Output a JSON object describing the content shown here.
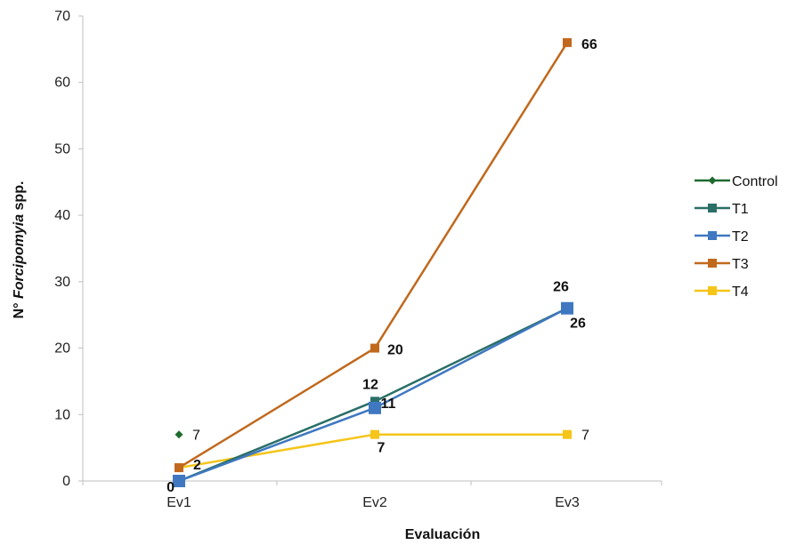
{
  "chart_data": {
    "type": "line",
    "categories": [
      "Ev1",
      "Ev2",
      "Ev3"
    ],
    "ylim": [
      0,
      70
    ],
    "yticks": [
      0,
      10,
      20,
      30,
      40,
      50,
      60,
      70
    ],
    "xlabel": "Evaluación",
    "ylabel": {
      "prefix": "N° ",
      "italic": "Forcipomyia",
      "suffix": " spp."
    },
    "grid": false,
    "legend_position": "right",
    "series": [
      {
        "name": "Control",
        "color": "#1e6b2f",
        "marker": "diamond",
        "values": [
          7,
          null,
          null
        ]
      },
      {
        "name": "T1",
        "color": "#2a6f68",
        "marker": "square",
        "values": [
          0,
          12,
          26
        ]
      },
      {
        "name": "T2",
        "color": "#3f78c1",
        "marker": "square-large",
        "values": [
          0,
          11,
          26
        ]
      },
      {
        "name": "T3",
        "color": "#c0691d",
        "marker": "square",
        "values": [
          2,
          20,
          66
        ]
      },
      {
        "name": "T4",
        "color": "#f5c518",
        "marker": "square",
        "values": [
          2,
          7,
          7
        ]
      }
    ],
    "data_labels": [
      {
        "text": "7",
        "series": "Control",
        "index": 0,
        "bold": false
      },
      {
        "text": "0",
        "series": "T2",
        "index": 0,
        "bold": true
      },
      {
        "text": "2",
        "series": "T4",
        "index": 0,
        "bold": true
      },
      {
        "text": "12",
        "series": "T1",
        "index": 1,
        "bold": true
      },
      {
        "text": "11",
        "series": "T2",
        "index": 1,
        "bold": true
      },
      {
        "text": "20",
        "series": "T3",
        "index": 1,
        "bold": true
      },
      {
        "text": "7",
        "series": "T4",
        "index": 1,
        "bold": true
      },
      {
        "text": "26",
        "series": "T1",
        "index": 2,
        "bold": true
      },
      {
        "text": "26",
        "series": "T2",
        "index": 2,
        "bold": true
      },
      {
        "text": "66",
        "series": "T3",
        "index": 2,
        "bold": true
      },
      {
        "text": "7",
        "series": "T4",
        "index": 2,
        "bold": false
      }
    ]
  }
}
